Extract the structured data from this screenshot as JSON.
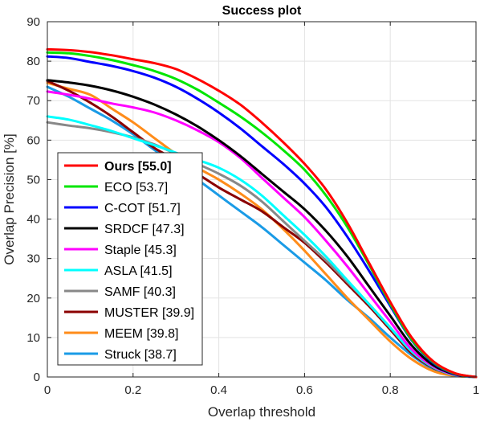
{
  "chart_data": {
    "type": "line",
    "title": "Success plot",
    "xlabel": "Overlap threshold",
    "ylabel": "Overlap Precision [%]",
    "xlim": [
      0,
      1
    ],
    "ylim": [
      0,
      90
    ],
    "xticks": [
      0,
      0.2,
      0.4,
      0.6,
      0.8,
      1
    ],
    "xtick_labels": [
      "0",
      "0.2",
      "0.4",
      "0.6",
      "0.8",
      "1"
    ],
    "yticks": [
      0,
      10,
      20,
      30,
      40,
      50,
      60,
      70,
      80,
      90
    ],
    "ytick_labels": [
      "0",
      "10",
      "20",
      "30",
      "40",
      "50",
      "60",
      "70",
      "80",
      "90"
    ],
    "grid": true,
    "legend_position": "bottom-left",
    "x": [
      0,
      0.05,
      0.1,
      0.15,
      0.2,
      0.25,
      0.3,
      0.35,
      0.4,
      0.45,
      0.5,
      0.55,
      0.6,
      0.65,
      0.7,
      0.75,
      0.8,
      0.85,
      0.9,
      0.95,
      1.0
    ],
    "series": [
      {
        "name": "Ours [55.0]",
        "color": "#ff0000",
        "bold": true,
        "values": [
          83.0,
          82.8,
          82.3,
          81.5,
          80.5,
          79.5,
          78.0,
          75.5,
          72.5,
          69.0,
          64.5,
          59.5,
          54.0,
          47.5,
          39.0,
          29.0,
          19.0,
          10.0,
          4.0,
          1.0,
          0.0
        ]
      },
      {
        "name": "ECO [53.7]",
        "color": "#00e600",
        "bold": false,
        "values": [
          82.2,
          82.0,
          81.3,
          80.3,
          79.0,
          77.5,
          75.5,
          72.8,
          69.5,
          66.0,
          62.0,
          57.5,
          52.5,
          46.0,
          38.0,
          28.5,
          18.5,
          9.5,
          3.8,
          0.9,
          0.0
        ]
      },
      {
        "name": "C-COT [51.7]",
        "color": "#0000ff",
        "bold": false,
        "values": [
          81.2,
          80.8,
          79.8,
          78.8,
          77.5,
          75.8,
          73.5,
          70.5,
          67.0,
          63.0,
          58.5,
          54.0,
          49.0,
          43.0,
          35.5,
          27.0,
          18.0,
          9.3,
          3.6,
          0.8,
          0.0
        ]
      },
      {
        "name": "SRDCF [47.3]",
        "color": "#000000",
        "bold": false,
        "values": [
          75.2,
          74.6,
          73.8,
          72.6,
          71.0,
          69.0,
          66.5,
          63.5,
          60.0,
          56.0,
          51.5,
          47.0,
          42.5,
          37.0,
          30.5,
          23.0,
          15.5,
          8.0,
          3.0,
          0.7,
          0.0
        ]
      },
      {
        "name": "Staple [45.3]",
        "color": "#ff00ff",
        "bold": false,
        "values": [
          72.3,
          71.5,
          70.5,
          69.3,
          68.3,
          67.0,
          65.0,
          62.5,
          59.5,
          55.5,
          50.5,
          45.5,
          40.5,
          34.5,
          28.0,
          21.0,
          14.0,
          7.0,
          2.7,
          0.6,
          0.0
        ]
      },
      {
        "name": "ASLA [41.5]",
        "color": "#00ffff",
        "bold": false,
        "values": [
          66.0,
          65.2,
          63.8,
          62.3,
          60.5,
          58.7,
          56.8,
          55.0,
          53.0,
          50.0,
          46.0,
          41.0,
          36.0,
          30.5,
          24.5,
          18.5,
          12.5,
          6.5,
          2.5,
          0.5,
          0.0
        ]
      },
      {
        "name": "SAMF [40.3]",
        "color": "#888888",
        "bold": false,
        "values": [
          64.5,
          63.7,
          63.0,
          62.0,
          60.7,
          58.9,
          56.5,
          54.0,
          51.5,
          48.5,
          44.5,
          39.5,
          34.5,
          29.5,
          24.0,
          18.5,
          12.5,
          6.5,
          2.5,
          0.5,
          0.0
        ]
      },
      {
        "name": "MUSTER [39.9]",
        "color": "#8b0000",
        "bold": false,
        "values": [
          75.0,
          72.5,
          69.5,
          66.0,
          62.0,
          58.0,
          55.0,
          51.5,
          48.0,
          45.0,
          42.0,
          38.0,
          34.0,
          29.0,
          23.5,
          18.0,
          12.0,
          6.0,
          2.3,
          0.5,
          0.0
        ]
      },
      {
        "name": "MEEM [39.8]",
        "color": "#ff8c1a",
        "bold": false,
        "values": [
          74.5,
          73.0,
          71.5,
          68.0,
          64.5,
          60.5,
          56.5,
          53.0,
          50.0,
          46.5,
          42.5,
          37.5,
          32.0,
          26.0,
          20.0,
          14.5,
          9.0,
          4.5,
          1.5,
          0.3,
          0.0
        ]
      },
      {
        "name": "Struck [38.7]",
        "color": "#1a9be6",
        "bold": false,
        "values": [
          73.5,
          71.0,
          68.0,
          65.0,
          61.5,
          57.5,
          53.5,
          50.0,
          46.0,
          42.0,
          38.0,
          33.5,
          29.0,
          24.5,
          19.5,
          15.0,
          10.0,
          5.5,
          2.0,
          0.4,
          0.0
        ]
      }
    ]
  }
}
